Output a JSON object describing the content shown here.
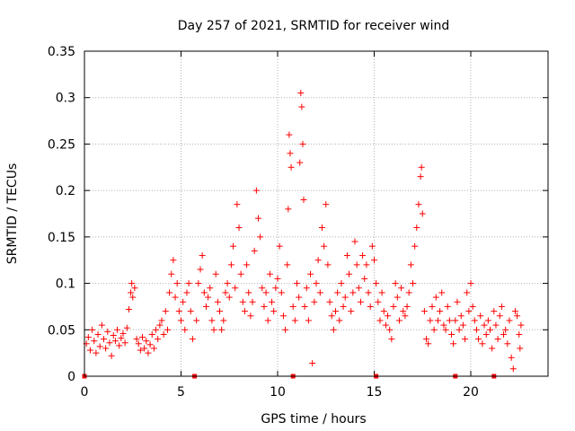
{
  "chart_data": {
    "type": "scatter",
    "title": "Day 257 of 2021, SRMTID for receiver wind",
    "xlabel": "GPS time / hours",
    "ylabel": "SRMTID / TECUs",
    "xlim": [
      0,
      24
    ],
    "ylim": [
      0,
      0.35
    ],
    "x_ticks": [
      {
        "v": 0,
        "label": "0"
      },
      {
        "v": 5,
        "label": "5"
      },
      {
        "v": 10,
        "label": "10"
      },
      {
        "v": 15,
        "label": "15"
      },
      {
        "v": 20,
        "label": "20"
      }
    ],
    "y_ticks": [
      {
        "v": 0,
        "label": "0"
      },
      {
        "v": 0.05,
        "label": "0.05"
      },
      {
        "v": 0.1,
        "label": "0.1"
      },
      {
        "v": 0.15,
        "label": "0.15"
      },
      {
        "v": 0.2,
        "label": "0.2"
      },
      {
        "v": 0.25,
        "label": "0.25"
      },
      {
        "v": 0.3,
        "label": "0.3"
      },
      {
        "v": 0.35,
        "label": "0.35"
      }
    ],
    "grid": true,
    "marker": "+",
    "marker_color": "#ff0000",
    "zero_markers_x": [
      0,
      5.7,
      10.8,
      15.1,
      19.2,
      21.2
    ],
    "series": [
      {
        "name": "wind",
        "points": [
          [
            0.1,
            0.035
          ],
          [
            0.2,
            0.042
          ],
          [
            0.3,
            0.028
          ],
          [
            0.4,
            0.05
          ],
          [
            0.5,
            0.038
          ],
          [
            0.6,
            0.025
          ],
          [
            0.7,
            0.045
          ],
          [
            0.8,
            0.032
          ],
          [
            0.9,
            0.055
          ],
          [
            1.0,
            0.04
          ],
          [
            1.1,
            0.03
          ],
          [
            1.2,
            0.048
          ],
          [
            1.3,
            0.036
          ],
          [
            1.4,
            0.022
          ],
          [
            1.5,
            0.044
          ],
          [
            1.6,
            0.038
          ],
          [
            1.7,
            0.05
          ],
          [
            1.8,
            0.033
          ],
          [
            1.9,
            0.041
          ],
          [
            2.0,
            0.046
          ],
          [
            2.1,
            0.036
          ],
          [
            2.2,
            0.052
          ],
          [
            2.3,
            0.072
          ],
          [
            2.4,
            0.09
          ],
          [
            2.45,
            0.1
          ],
          [
            2.5,
            0.085
          ],
          [
            2.6,
            0.095
          ],
          [
            2.7,
            0.04
          ],
          [
            2.8,
            0.035
          ],
          [
            2.9,
            0.028
          ],
          [
            3.0,
            0.042
          ],
          [
            3.1,
            0.03
          ],
          [
            3.2,
            0.038
          ],
          [
            3.3,
            0.025
          ],
          [
            3.4,
            0.034
          ],
          [
            3.5,
            0.045
          ],
          [
            3.6,
            0.03
          ],
          [
            3.7,
            0.05
          ],
          [
            3.8,
            0.04
          ],
          [
            3.9,
            0.055
          ],
          [
            4.0,
            0.06
          ],
          [
            4.1,
            0.045
          ],
          [
            4.2,
            0.07
          ],
          [
            4.3,
            0.05
          ],
          [
            4.4,
            0.09
          ],
          [
            4.5,
            0.11
          ],
          [
            4.6,
            0.125
          ],
          [
            4.7,
            0.085
          ],
          [
            4.8,
            0.1
          ],
          [
            4.9,
            0.07
          ],
          [
            5.0,
            0.06
          ],
          [
            5.1,
            0.08
          ],
          [
            5.2,
            0.05
          ],
          [
            5.3,
            0.09
          ],
          [
            5.4,
            0.1
          ],
          [
            5.5,
            0.07
          ],
          [
            5.6,
            0.04
          ],
          [
            5.8,
            0.06
          ],
          [
            5.9,
            0.1
          ],
          [
            6.0,
            0.115
          ],
          [
            6.1,
            0.13
          ],
          [
            6.2,
            0.09
          ],
          [
            6.3,
            0.075
          ],
          [
            6.4,
            0.085
          ],
          [
            6.5,
            0.095
          ],
          [
            6.6,
            0.06
          ],
          [
            6.7,
            0.05
          ],
          [
            6.8,
            0.11
          ],
          [
            6.9,
            0.08
          ],
          [
            7.0,
            0.07
          ],
          [
            7.1,
            0.05
          ],
          [
            7.2,
            0.06
          ],
          [
            7.3,
            0.09
          ],
          [
            7.4,
            0.1
          ],
          [
            7.5,
            0.085
          ],
          [
            7.6,
            0.12
          ],
          [
            7.7,
            0.14
          ],
          [
            7.8,
            0.095
          ],
          [
            7.9,
            0.185
          ],
          [
            8.0,
            0.16
          ],
          [
            8.1,
            0.11
          ],
          [
            8.2,
            0.08
          ],
          [
            8.3,
            0.07
          ],
          [
            8.4,
            0.12
          ],
          [
            8.5,
            0.09
          ],
          [
            8.6,
            0.065
          ],
          [
            8.7,
            0.08
          ],
          [
            8.8,
            0.135
          ],
          [
            8.9,
            0.2
          ],
          [
            9.0,
            0.17
          ],
          [
            9.1,
            0.15
          ],
          [
            9.2,
            0.095
          ],
          [
            9.3,
            0.075
          ],
          [
            9.4,
            0.09
          ],
          [
            9.5,
            0.06
          ],
          [
            9.6,
            0.11
          ],
          [
            9.7,
            0.08
          ],
          [
            9.8,
            0.07
          ],
          [
            9.9,
            0.095
          ],
          [
            10.0,
            0.105
          ],
          [
            10.1,
            0.14
          ],
          [
            10.2,
            0.09
          ],
          [
            10.3,
            0.065
          ],
          [
            10.4,
            0.05
          ],
          [
            10.5,
            0.12
          ],
          [
            10.55,
            0.18
          ],
          [
            10.6,
            0.26
          ],
          [
            10.65,
            0.24
          ],
          [
            10.7,
            0.225
          ],
          [
            10.8,
            0.075
          ],
          [
            10.9,
            0.06
          ],
          [
            11.0,
            0.1
          ],
          [
            11.1,
            0.085
          ],
          [
            11.15,
            0.23
          ],
          [
            11.2,
            0.305
          ],
          [
            11.25,
            0.29
          ],
          [
            11.3,
            0.25
          ],
          [
            11.35,
            0.19
          ],
          [
            11.4,
            0.075
          ],
          [
            11.5,
            0.095
          ],
          [
            11.6,
            0.06
          ],
          [
            11.7,
            0.11
          ],
          [
            11.8,
            0.014
          ],
          [
            11.9,
            0.08
          ],
          [
            12.0,
            0.1
          ],
          [
            12.1,
            0.125
          ],
          [
            12.2,
            0.09
          ],
          [
            12.3,
            0.16
          ],
          [
            12.4,
            0.14
          ],
          [
            12.5,
            0.185
          ],
          [
            12.6,
            0.12
          ],
          [
            12.7,
            0.08
          ],
          [
            12.8,
            0.065
          ],
          [
            12.9,
            0.05
          ],
          [
            13.0,
            0.07
          ],
          [
            13.1,
            0.09
          ],
          [
            13.2,
            0.06
          ],
          [
            13.3,
            0.1
          ],
          [
            13.4,
            0.075
          ],
          [
            13.5,
            0.085
          ],
          [
            13.6,
            0.13
          ],
          [
            13.7,
            0.11
          ],
          [
            13.8,
            0.07
          ],
          [
            13.9,
            0.09
          ],
          [
            14.0,
            0.145
          ],
          [
            14.1,
            0.12
          ],
          [
            14.2,
            0.095
          ],
          [
            14.3,
            0.08
          ],
          [
            14.4,
            0.13
          ],
          [
            14.5,
            0.105
          ],
          [
            14.6,
            0.12
          ],
          [
            14.7,
            0.09
          ],
          [
            14.8,
            0.075
          ],
          [
            14.9,
            0.14
          ],
          [
            15.0,
            0.125
          ],
          [
            15.1,
            0.1
          ],
          [
            15.2,
            0.08
          ],
          [
            15.3,
            0.06
          ],
          [
            15.4,
            0.09
          ],
          [
            15.5,
            0.07
          ],
          [
            15.6,
            0.055
          ],
          [
            15.7,
            0.065
          ],
          [
            15.8,
            0.05
          ],
          [
            15.9,
            0.04
          ],
          [
            16.0,
            0.075
          ],
          [
            16.1,
            0.1
          ],
          [
            16.2,
            0.085
          ],
          [
            16.3,
            0.06
          ],
          [
            16.4,
            0.095
          ],
          [
            16.5,
            0.07
          ],
          [
            16.6,
            0.065
          ],
          [
            16.7,
            0.075
          ],
          [
            16.8,
            0.09
          ],
          [
            16.9,
            0.12
          ],
          [
            17.0,
            0.1
          ],
          [
            17.1,
            0.14
          ],
          [
            17.2,
            0.16
          ],
          [
            17.3,
            0.185
          ],
          [
            17.4,
            0.215
          ],
          [
            17.45,
            0.225
          ],
          [
            17.5,
            0.175
          ],
          [
            17.6,
            0.07
          ],
          [
            17.7,
            0.04
          ],
          [
            17.8,
            0.035
          ],
          [
            17.9,
            0.06
          ],
          [
            18.0,
            0.075
          ],
          [
            18.1,
            0.05
          ],
          [
            18.2,
            0.085
          ],
          [
            18.3,
            0.06
          ],
          [
            18.4,
            0.07
          ],
          [
            18.5,
            0.09
          ],
          [
            18.6,
            0.055
          ],
          [
            18.7,
            0.05
          ],
          [
            18.8,
            0.075
          ],
          [
            18.9,
            0.06
          ],
          [
            19.0,
            0.045
          ],
          [
            19.1,
            0.035
          ],
          [
            19.2,
            0.06
          ],
          [
            19.3,
            0.08
          ],
          [
            19.4,
            0.05
          ],
          [
            19.5,
            0.065
          ],
          [
            19.6,
            0.055
          ],
          [
            19.7,
            0.04
          ],
          [
            19.8,
            0.09
          ],
          [
            19.9,
            0.07
          ],
          [
            20.0,
            0.1
          ],
          [
            20.1,
            0.075
          ],
          [
            20.2,
            0.06
          ],
          [
            20.3,
            0.05
          ],
          [
            20.4,
            0.04
          ],
          [
            20.5,
            0.065
          ],
          [
            20.6,
            0.035
          ],
          [
            20.7,
            0.055
          ],
          [
            20.8,
            0.045
          ],
          [
            20.9,
            0.06
          ],
          [
            21.0,
            0.05
          ],
          [
            21.1,
            0.03
          ],
          [
            21.2,
            0.07
          ],
          [
            21.3,
            0.055
          ],
          [
            21.4,
            0.04
          ],
          [
            21.5,
            0.065
          ],
          [
            21.6,
            0.075
          ],
          [
            21.7,
            0.045
          ],
          [
            21.8,
            0.05
          ],
          [
            21.9,
            0.035
          ],
          [
            22.0,
            0.06
          ],
          [
            22.1,
            0.02
          ],
          [
            22.2,
            0.008
          ],
          [
            22.3,
            0.07
          ],
          [
            22.4,
            0.065
          ],
          [
            22.5,
            0.045
          ],
          [
            22.55,
            0.03
          ],
          [
            22.6,
            0.055
          ]
        ]
      }
    ]
  }
}
